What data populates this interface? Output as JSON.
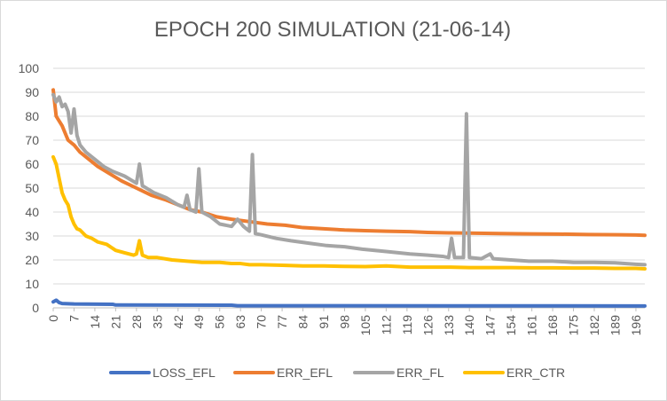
{
  "chart_data": {
    "type": "line",
    "title": "EPOCH 200 SIMULATION (21-06-14)",
    "xlabel": "",
    "ylabel": "",
    "ylim": [
      0,
      100
    ],
    "yticks": [
      0,
      10,
      20,
      30,
      40,
      50,
      60,
      70,
      80,
      90,
      100
    ],
    "xlim": [
      0,
      199
    ],
    "xticks": [
      0,
      7,
      14,
      21,
      28,
      35,
      42,
      49,
      56,
      63,
      70,
      77,
      84,
      91,
      98,
      105,
      112,
      119,
      126,
      133,
      140,
      147,
      154,
      161,
      168,
      175,
      182,
      189,
      196
    ],
    "grid": "horizontal",
    "legend_position": "bottom",
    "series": [
      {
        "name": "LOSS_EFL",
        "color": "#4472c4",
        "points": [
          [
            0,
            2.5
          ],
          [
            1,
            3.2
          ],
          [
            2,
            2.2
          ],
          [
            3,
            1.8
          ],
          [
            7,
            1.6
          ],
          [
            20,
            1.5
          ],
          [
            21,
            1.2
          ],
          [
            60,
            1.1
          ],
          [
            62,
            0.9
          ],
          [
            199,
            0.8
          ]
        ]
      },
      {
        "name": "ERR_EFL",
        "color": "#ed7d31",
        "points": [
          [
            0,
            91
          ],
          [
            1,
            80
          ],
          [
            3,
            76
          ],
          [
            5,
            70
          ],
          [
            7,
            68
          ],
          [
            9,
            65
          ],
          [
            12,
            62
          ],
          [
            15,
            59
          ],
          [
            19,
            56
          ],
          [
            23,
            53
          ],
          [
            28,
            50
          ],
          [
            33,
            47
          ],
          [
            38,
            45
          ],
          [
            42,
            43
          ],
          [
            46,
            41
          ],
          [
            50,
            40
          ],
          [
            55,
            38
          ],
          [
            60,
            37
          ],
          [
            66,
            36
          ],
          [
            72,
            35
          ],
          [
            78,
            34.5
          ],
          [
            84,
            33.5
          ],
          [
            91,
            33
          ],
          [
            98,
            32.5
          ],
          [
            105,
            32.2
          ],
          [
            112,
            32
          ],
          [
            120,
            31.8
          ],
          [
            126,
            31.5
          ],
          [
            133,
            31.3
          ],
          [
            140,
            31.2
          ],
          [
            150,
            31
          ],
          [
            160,
            30.9
          ],
          [
            170,
            30.8
          ],
          [
            180,
            30.6
          ],
          [
            190,
            30.5
          ],
          [
            196,
            30.4
          ],
          [
            199,
            30.3
          ]
        ]
      },
      {
        "name": "ERR_FL",
        "color": "#a5a5a5",
        "points": [
          [
            0,
            89
          ],
          [
            1,
            86
          ],
          [
            2,
            88
          ],
          [
            3,
            84
          ],
          [
            4,
            85
          ],
          [
            5,
            82
          ],
          [
            6,
            73
          ],
          [
            7,
            83
          ],
          [
            8,
            72
          ],
          [
            9,
            68
          ],
          [
            11,
            65
          ],
          [
            14,
            62
          ],
          [
            17,
            59
          ],
          [
            20,
            57
          ],
          [
            24,
            55
          ],
          [
            28,
            52
          ],
          [
            29,
            60
          ],
          [
            30,
            51
          ],
          [
            34,
            48
          ],
          [
            38,
            46
          ],
          [
            42,
            43
          ],
          [
            44,
            42
          ],
          [
            45,
            47
          ],
          [
            46,
            41
          ],
          [
            48,
            40
          ],
          [
            49,
            58
          ],
          [
            50,
            40
          ],
          [
            53,
            38
          ],
          [
            56,
            35
          ],
          [
            60,
            34
          ],
          [
            62,
            37
          ],
          [
            64,
            34
          ],
          [
            65,
            33
          ],
          [
            66,
            32
          ],
          [
            67,
            64
          ],
          [
            68,
            31
          ],
          [
            70,
            30.5
          ],
          [
            75,
            29
          ],
          [
            80,
            28
          ],
          [
            86,
            27
          ],
          [
            92,
            26
          ],
          [
            98,
            25.5
          ],
          [
            104,
            24.5
          ],
          [
            112,
            23.5
          ],
          [
            120,
            22.5
          ],
          [
            126,
            22
          ],
          [
            131,
            21.5
          ],
          [
            133,
            21
          ],
          [
            134,
            29
          ],
          [
            135,
            21
          ],
          [
            138,
            21
          ],
          [
            139,
            81
          ],
          [
            140,
            21
          ],
          [
            144,
            20.5
          ],
          [
            147,
            22.5
          ],
          [
            148,
            20.5
          ],
          [
            154,
            20
          ],
          [
            160,
            19.5
          ],
          [
            168,
            19.5
          ],
          [
            175,
            19
          ],
          [
            182,
            19
          ],
          [
            189,
            18.8
          ],
          [
            196,
            18.2
          ],
          [
            199,
            18
          ]
        ]
      },
      {
        "name": "ERR_CTR",
        "color": "#ffc000",
        "points": [
          [
            0,
            63
          ],
          [
            1,
            60
          ],
          [
            2,
            54
          ],
          [
            3,
            48
          ],
          [
            4,
            45
          ],
          [
            5,
            43
          ],
          [
            6,
            38
          ],
          [
            7,
            35
          ],
          [
            8,
            33
          ],
          [
            9,
            32.5
          ],
          [
            11,
            30
          ],
          [
            13,
            29
          ],
          [
            15,
            27.5
          ],
          [
            18,
            26.5
          ],
          [
            21,
            24
          ],
          [
            24,
            23
          ],
          [
            27,
            22
          ],
          [
            28,
            22.5
          ],
          [
            29,
            28
          ],
          [
            30,
            22
          ],
          [
            32,
            21
          ],
          [
            35,
            21
          ],
          [
            40,
            20
          ],
          [
            45,
            19.5
          ],
          [
            50,
            19
          ],
          [
            56,
            19
          ],
          [
            60,
            18.5
          ],
          [
            63,
            18.5
          ],
          [
            66,
            18
          ],
          [
            70,
            18
          ],
          [
            77,
            17.8
          ],
          [
            84,
            17.5
          ],
          [
            91,
            17.5
          ],
          [
            98,
            17.3
          ],
          [
            105,
            17.2
          ],
          [
            112,
            17.5
          ],
          [
            120,
            17
          ],
          [
            126,
            17
          ],
          [
            133,
            17
          ],
          [
            140,
            16.8
          ],
          [
            147,
            16.8
          ],
          [
            154,
            16.8
          ],
          [
            161,
            16.7
          ],
          [
            168,
            16.7
          ],
          [
            175,
            16.6
          ],
          [
            182,
            16.6
          ],
          [
            189,
            16.5
          ],
          [
            196,
            16.5
          ],
          [
            199,
            16.3
          ]
        ]
      }
    ]
  }
}
